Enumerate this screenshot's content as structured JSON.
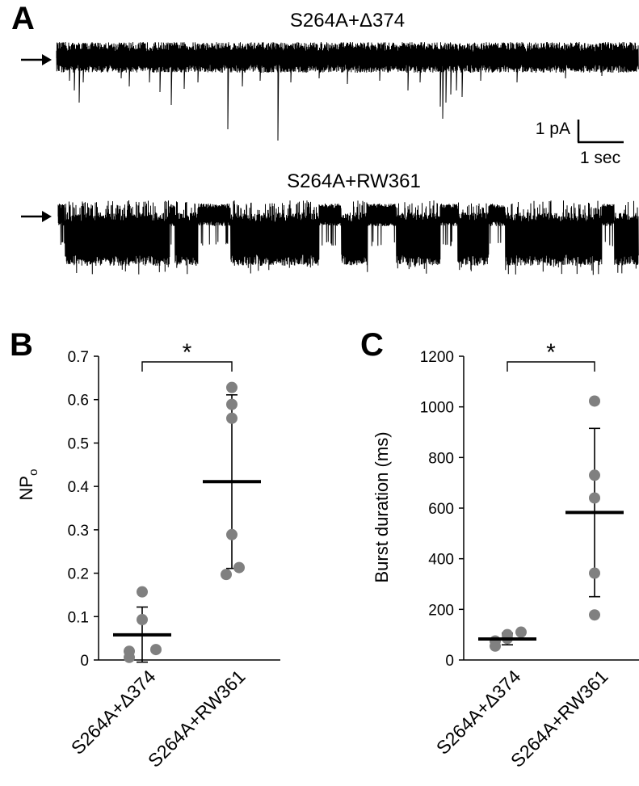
{
  "panels": {
    "a": "A",
    "b": "B",
    "c": "C"
  },
  "traces": {
    "trace1_title": "S264A+Δ374",
    "trace2_title": "S264A+RW361",
    "scale_current": "1 pA",
    "scale_time": "1 sec"
  },
  "colors": {
    "trace": "#000000",
    "points": "#808080",
    "axis": "#000000"
  },
  "chart_data": [
    {
      "type": "scatter",
      "panel": "B",
      "ylabel_main": "NP",
      "ylabel_sub": "o",
      "ylim": [
        0,
        0.7
      ],
      "yticks": [
        0,
        0.1,
        0.2,
        0.3,
        0.4,
        0.5,
        0.6,
        0.7
      ],
      "ytick_labels": [
        "0",
        "0.1",
        "0.2",
        "0.3",
        "0.4",
        "0.5",
        "0.6",
        "0.7"
      ],
      "categories": [
        "S264A+Δ374",
        "S264A+RW361"
      ],
      "groups": [
        {
          "category": "S264A+Δ374",
          "points": [
            0.006,
            0.02,
            0.024,
            0.093,
            0.157
          ],
          "mean": 0.058,
          "error_low": -0.005,
          "error_high": 0.122
        },
        {
          "category": "S264A+RW361",
          "points": [
            0.197,
            0.213,
            0.289,
            0.557,
            0.589,
            0.628
          ],
          "mean": 0.411,
          "error_low": 0.211,
          "error_high": 0.611
        }
      ],
      "significance": "*"
    },
    {
      "type": "scatter",
      "panel": "C",
      "ylabel": "Burst duration (ms)",
      "ylim": [
        0,
        1200
      ],
      "yticks": [
        0,
        200,
        400,
        600,
        800,
        1000,
        1200
      ],
      "ytick_labels": [
        "0",
        "200",
        "400",
        "600",
        "800",
        "1000",
        "1200"
      ],
      "categories": [
        "S264A+Δ374",
        "S264A+RW361"
      ],
      "groups": [
        {
          "category": "S264A+Δ374",
          "points": [
            55,
            75,
            85,
            100,
            110
          ],
          "mean": 83,
          "error_low": 60,
          "error_high": 106
        },
        {
          "category": "S264A+RW361",
          "points": [
            178,
            343,
            640,
            730,
            1023
          ],
          "mean": 583,
          "error_low": 250,
          "error_high": 915
        }
      ],
      "significance": "*"
    }
  ]
}
